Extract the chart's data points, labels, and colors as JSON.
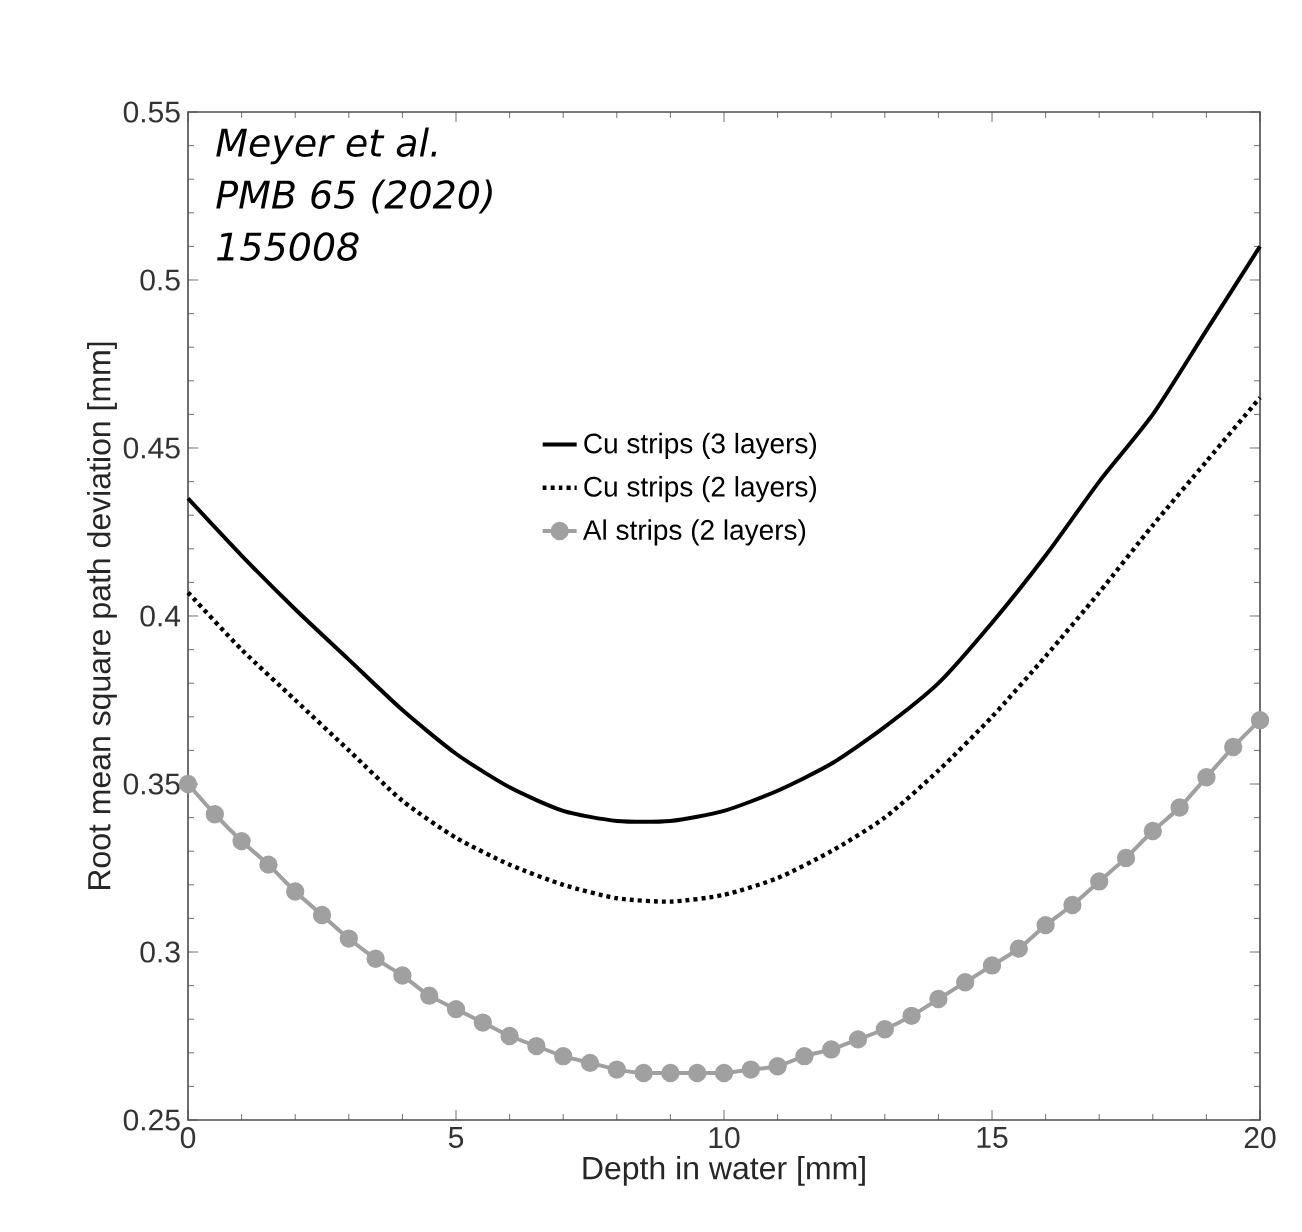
{
  "chart_data": {
    "type": "line",
    "xlabel": "Depth in water [mm]",
    "ylabel": "Root mean square path deviation [mm]",
    "annotations": [
      "Meyer et al.",
      "PMB 65 (2020)",
      "155008"
    ],
    "xlim": [
      0,
      20
    ],
    "ylim": [
      0.25,
      0.55
    ],
    "xticks": [
      0,
      5,
      10,
      15,
      20
    ],
    "yticks": [
      0.25,
      0.3,
      0.35,
      0.4,
      0.45,
      0.5,
      0.55
    ],
    "legend": "top",
    "series": [
      {
        "name": "Cu strips (3 layers)",
        "color": "#000000",
        "line_style": "solid",
        "marker": "none",
        "x": [
          0,
          1,
          2,
          3,
          4,
          5,
          6,
          7,
          8,
          9,
          10,
          11,
          12,
          13,
          14,
          15,
          16,
          17,
          18,
          19,
          20
        ],
        "values": [
          0.435,
          0.418,
          0.402,
          0.387,
          0.372,
          0.359,
          0.349,
          0.342,
          0.339,
          0.339,
          0.342,
          0.348,
          0.356,
          0.367,
          0.38,
          0.398,
          0.418,
          0.44,
          0.46,
          0.485,
          0.51
        ]
      },
      {
        "name": "Cu strips (2 layers)",
        "color": "#000000",
        "line_style": "dotted",
        "marker": "none",
        "x": [
          0,
          1,
          2,
          3,
          4,
          5,
          6,
          7,
          8,
          9,
          10,
          11,
          12,
          13,
          14,
          15,
          16,
          17,
          18,
          19,
          20
        ],
        "values": [
          0.407,
          0.39,
          0.375,
          0.36,
          0.345,
          0.334,
          0.326,
          0.32,
          0.316,
          0.315,
          0.317,
          0.322,
          0.33,
          0.34,
          0.354,
          0.37,
          0.388,
          0.407,
          0.427,
          0.446,
          0.465
        ]
      },
      {
        "name": "Al strips (2 layers)",
        "color": "#a0a0a0",
        "line_style": "solid",
        "marker": "circle",
        "x": [
          0,
          0.5,
          1,
          1.5,
          2,
          2.5,
          3,
          3.5,
          4,
          4.5,
          5,
          5.5,
          6,
          6.5,
          7,
          7.5,
          8,
          8.5,
          9,
          9.5,
          10,
          10.5,
          11,
          11.5,
          12,
          12.5,
          13,
          13.5,
          14,
          14.5,
          15,
          15.5,
          16,
          16.5,
          17,
          17.5,
          18,
          18.5,
          19,
          19.5,
          20
        ],
        "values": [
          0.35,
          0.341,
          0.333,
          0.326,
          0.318,
          0.311,
          0.304,
          0.298,
          0.293,
          0.287,
          0.283,
          0.279,
          0.275,
          0.272,
          0.269,
          0.267,
          0.265,
          0.264,
          0.264,
          0.264,
          0.264,
          0.265,
          0.266,
          0.269,
          0.271,
          0.274,
          0.277,
          0.281,
          0.286,
          0.291,
          0.296,
          0.301,
          0.308,
          0.314,
          0.321,
          0.328,
          0.336,
          0.343,
          0.352,
          0.361,
          0.369
        ]
      }
    ]
  }
}
